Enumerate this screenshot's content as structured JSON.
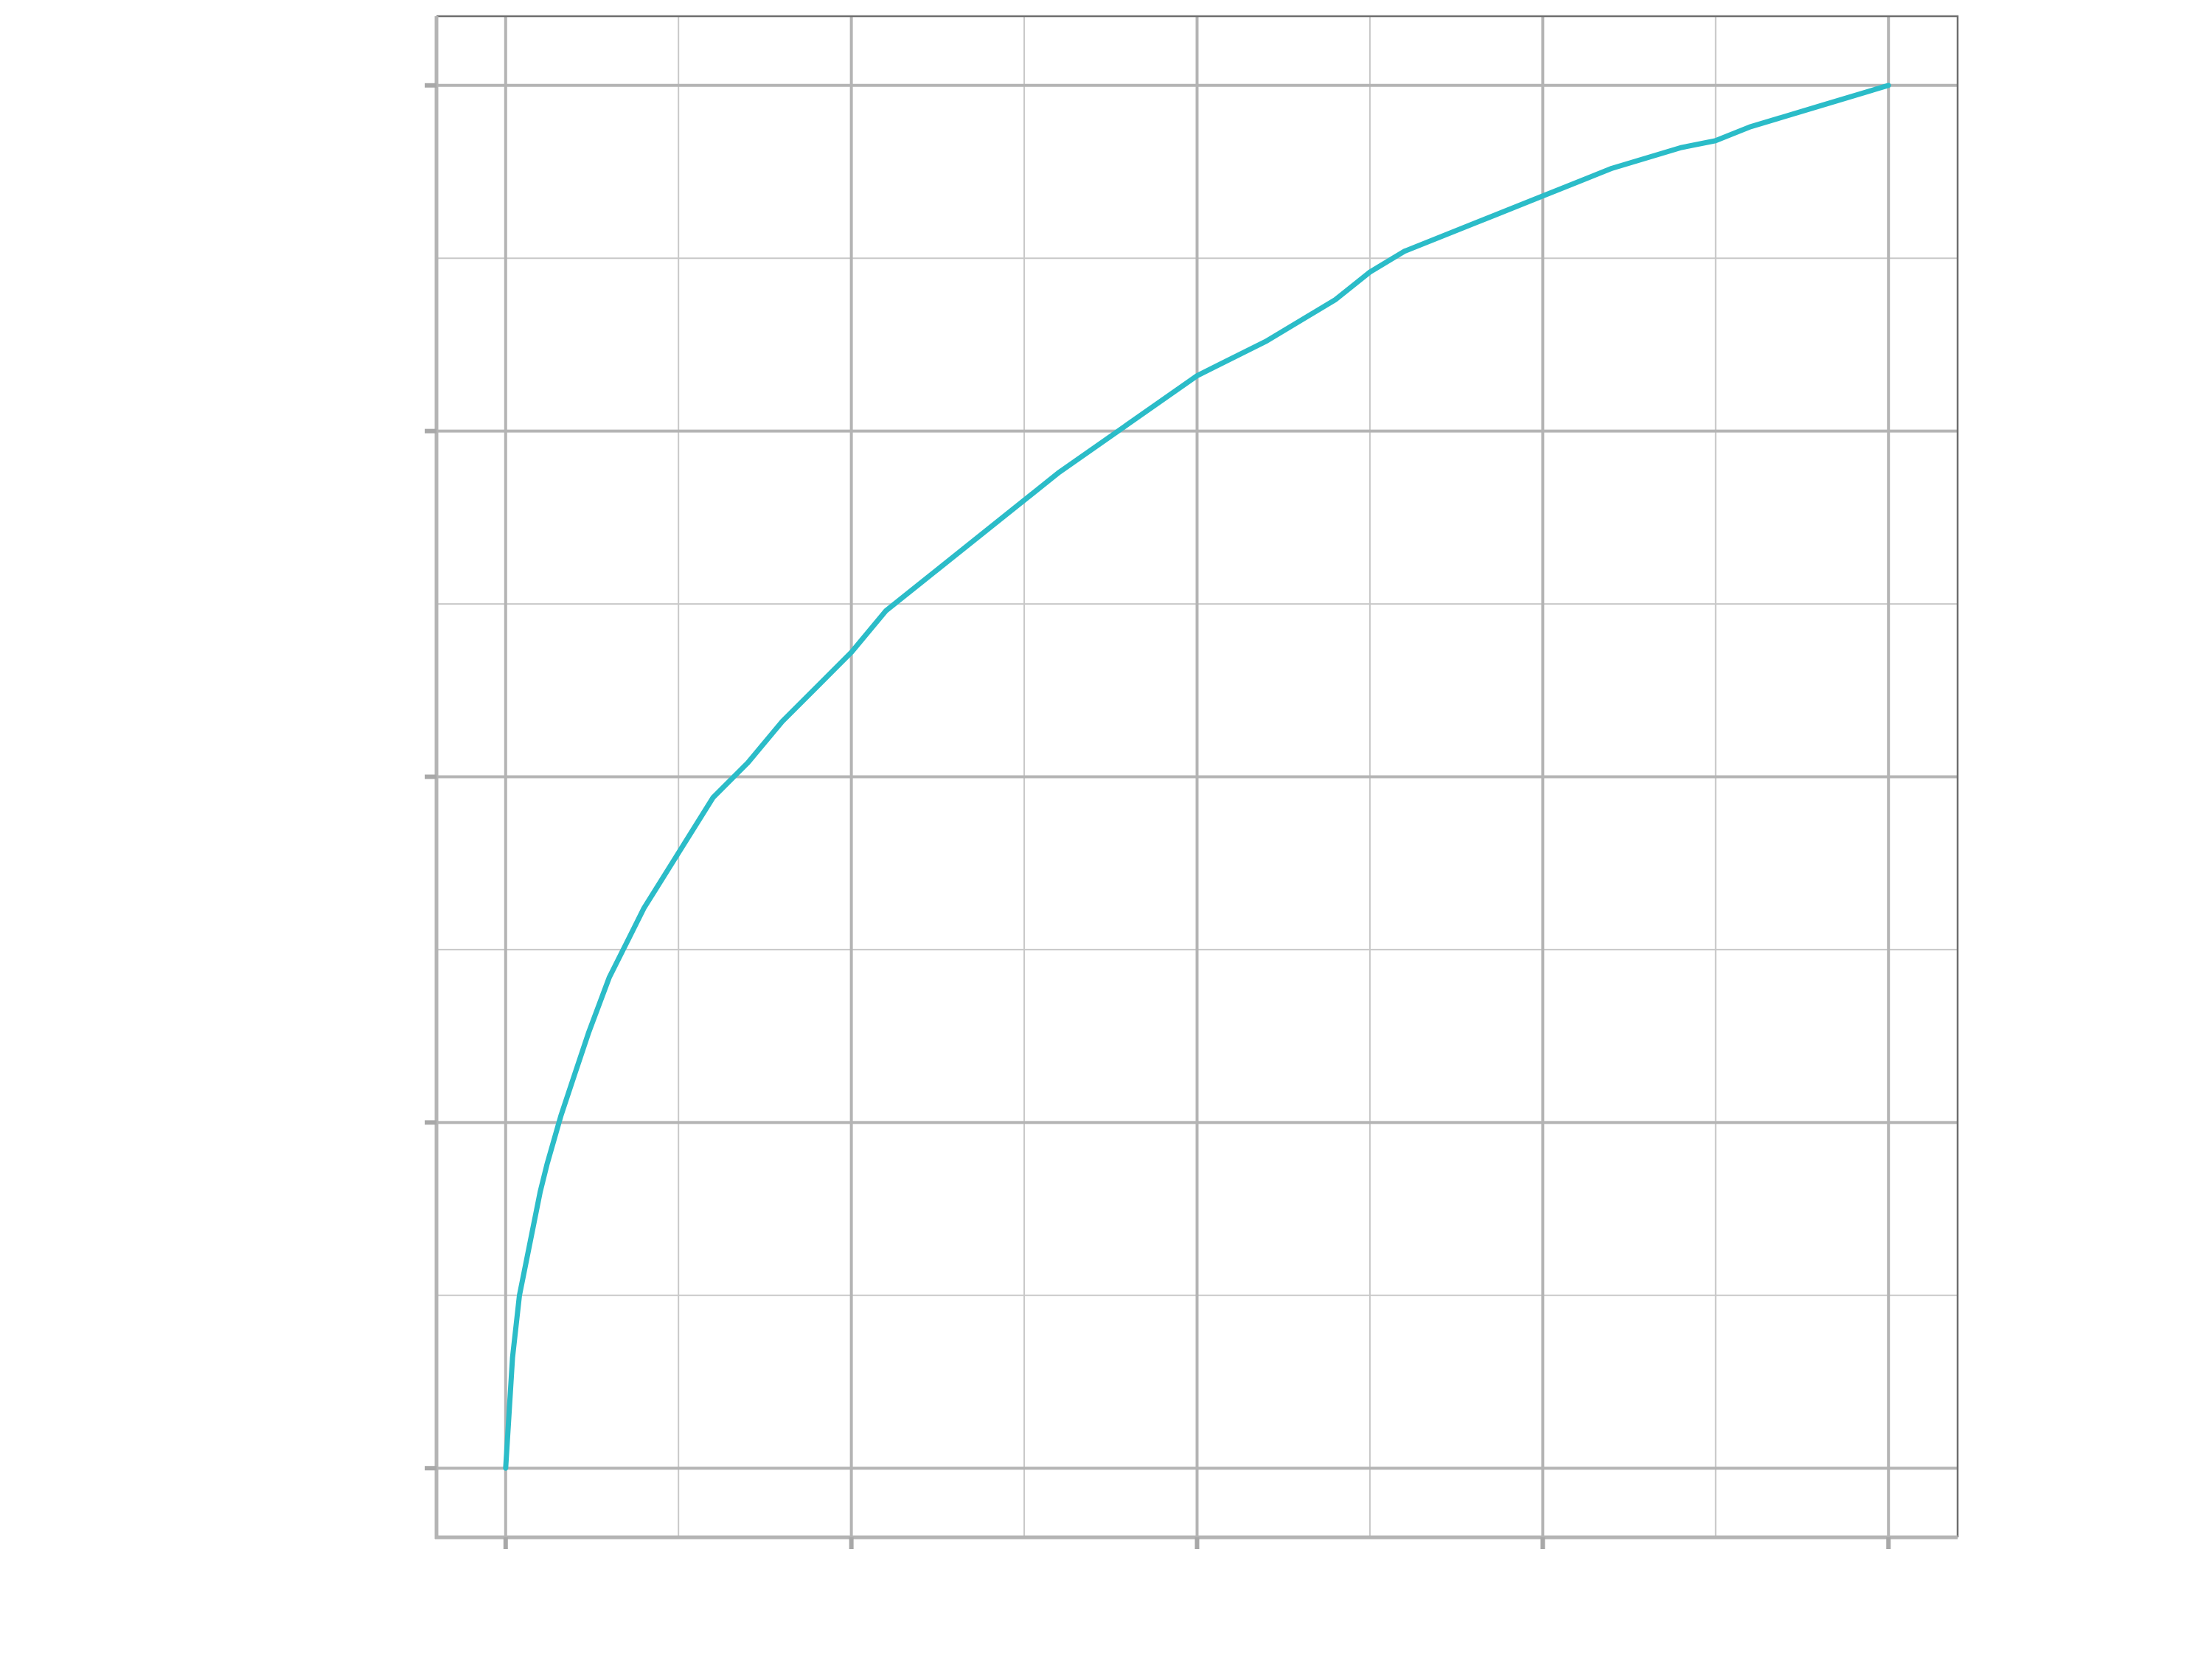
{
  "chart_data": {
    "type": "line",
    "title": "",
    "xlabel": "",
    "ylabel": "",
    "xlim": [
      -0.1,
      2.1
    ],
    "ylim": [
      -0.1,
      2.1
    ],
    "x_major_ticks": [
      0,
      0.5,
      1,
      1.5,
      2
    ],
    "x_minor_ticks": [
      0.25,
      0.75,
      1.25,
      1.75
    ],
    "y_major_ticks": [
      0,
      0.5,
      1,
      1.5,
      2
    ],
    "y_minor_ticks": [
      0.25,
      0.75,
      1.25,
      1.75
    ],
    "grid": true,
    "legend": "none",
    "colors": {
      "series": "#2bbcc8",
      "grid": "#b4b4b4",
      "frame": "#6e6e6e"
    },
    "series": [
      {
        "x": [
          0,
          0.01,
          0.02,
          0.03,
          0.04,
          0.05,
          0.06,
          0.08,
          0.1,
          0.12,
          0.15,
          0.18,
          0.2,
          0.25,
          0.3,
          0.35,
          0.4,
          0.45,
          0.5,
          0.55,
          0.6,
          0.7,
          0.75,
          0.8,
          0.9,
          1.0,
          1.1,
          1.2,
          1.25,
          1.3,
          1.4,
          1.5,
          1.6,
          1.7,
          1.75,
          1.8,
          1.9,
          2.0
        ],
        "y": [
          0,
          0.16,
          0.25,
          0.3,
          0.35,
          0.4,
          0.44,
          0.51,
          0.57,
          0.63,
          0.71,
          0.77,
          0.81,
          0.89,
          0.97,
          1.02,
          1.08,
          1.13,
          1.18,
          1.24,
          1.28,
          1.36,
          1.4,
          1.44,
          1.51,
          1.58,
          1.63,
          1.69,
          1.73,
          1.76,
          1.8,
          1.84,
          1.88,
          1.91,
          1.92,
          1.94,
          1.97,
          2.0
        ]
      }
    ]
  }
}
